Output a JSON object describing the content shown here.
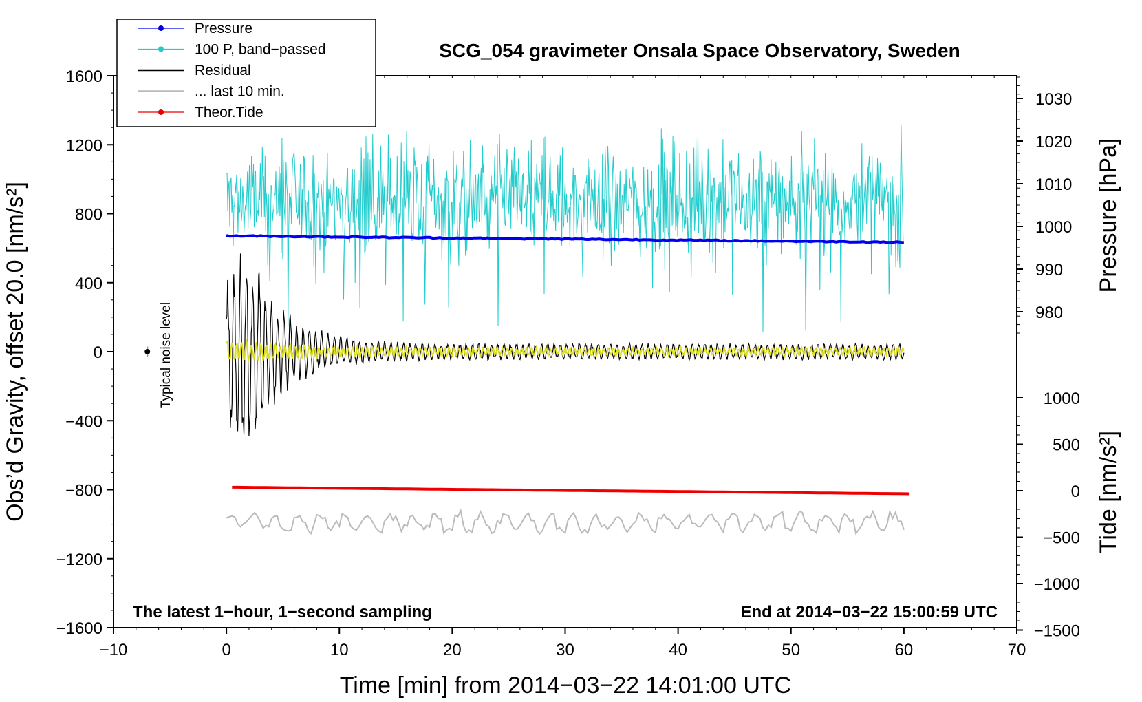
{
  "chart_data": {
    "type": "line",
    "title": "SCG_054 gravimeter Onsala Space Observatory, Sweden",
    "xlabel": "Time [min] from 2014−03−22 14:01:00 UTC",
    "ylabel": "Obs’d Gravity, offset 20.0 [nm/s²]",
    "ylabel_right_top": "Pressure [hPa]",
    "ylabel_right_bottom": "Tide [nm/s²]",
    "xlim": [
      -10,
      70
    ],
    "ylim": [
      -1600,
      1600
    ],
    "pressure_axis_range": [
      975,
      1035
    ],
    "tide_axis_range": [
      -1500,
      1000
    ],
    "x_ticks": [
      "−10",
      "0",
      "10",
      "20",
      "30",
      "40",
      "50",
      "60",
      "70"
    ],
    "y_ticks": [
      "1600",
      "1200",
      "800",
      "400",
      "0",
      "−400",
      "−800",
      "−1200",
      "−1600"
    ],
    "pressure_ticks": [
      "1030",
      "1020",
      "1010",
      "1000",
      "990",
      "980"
    ],
    "tide_ticks": [
      "1000",
      "500",
      "0",
      "−500",
      "−1000",
      "−1500"
    ],
    "legend": [
      {
        "label": "Pressure",
        "color": "#0000ee",
        "marker": true
      },
      {
        "label": "100 P, band−passed",
        "color": "#22cccc",
        "marker": true
      },
      {
        "label": "Residual",
        "color": "#000000",
        "marker": false
      },
      {
        "label": "... last 10 min.",
        "color": "#bbbbbb",
        "marker": false
      },
      {
        "label": "Theor.Tide",
        "color": "#ee0000",
        "marker": true
      }
    ],
    "annotations": {
      "bottom_left": "The latest 1−hour, 1−second sampling",
      "bottom_right": "End at 2014−03−22 15:00:59 UTC",
      "noise_label": "Typical noise level"
    },
    "series": [
      {
        "name": "Pressure",
        "axis": "pressure_hPa",
        "color": "#0000ee",
        "x": [
          0,
          60
        ],
        "values": [
          997.8,
          996.3
        ]
      },
      {
        "name": "100 P, band−passed",
        "axis": "gravity_nm_s2",
        "color": "#22cccc",
        "x_range": [
          0,
          60
        ],
        "mean": 870,
        "amplitude_typical": 180,
        "min": 100,
        "max": 1330
      },
      {
        "name": "Residual",
        "axis": "gravity_nm_s2",
        "color": "#000000",
        "x_range": [
          0,
          60
        ],
        "mean": 0,
        "peak_amplitude": 730,
        "peak_time": 1.5,
        "late_amplitude": 50
      },
      {
        "name": "Residual (yellow overlay)",
        "axis": "gravity_nm_s2",
        "color": "#dddd22",
        "x_range": [
          0,
          60
        ],
        "mean": 0,
        "amplitude_typical": 25
      },
      {
        "name": "... last 10 min.",
        "axis": "gravity_nm_s2",
        "color": "#bbbbbb",
        "x_range": [
          0,
          60
        ],
        "mean": -990,
        "amplitude_typical": 70
      },
      {
        "name": "Theor.Tide",
        "axis": "tide_nm_s2",
        "color": "#ee0000",
        "x": [
          0.5,
          60.5
        ],
        "values": [
          38,
          -33
        ]
      }
    ],
    "noise_marker": {
      "x": -7,
      "y": 0,
      "error": 30
    }
  }
}
